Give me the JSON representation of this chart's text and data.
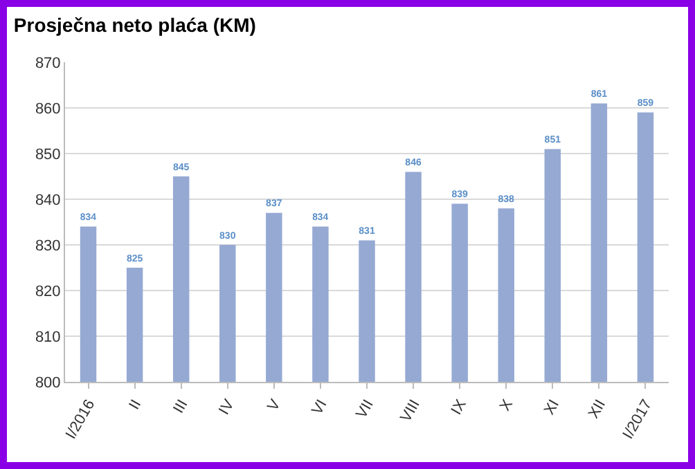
{
  "chart_data": {
    "type": "bar",
    "title": "Prosječna neto plaća (KM)",
    "categories": [
      "I/2016",
      "II",
      "III",
      "IV",
      "V",
      "VI",
      "VII",
      "VIII",
      "IX",
      "X",
      "XI",
      "XII",
      "I/2017"
    ],
    "values": [
      834,
      825,
      845,
      830,
      837,
      834,
      831,
      846,
      839,
      838,
      851,
      861,
      859
    ],
    "color": "#95a9d3",
    "ylim": [
      800,
      870
    ],
    "yticks": [
      800,
      810,
      820,
      830,
      840,
      850,
      860,
      870
    ],
    "grid": "y",
    "data_labels": true
  }
}
